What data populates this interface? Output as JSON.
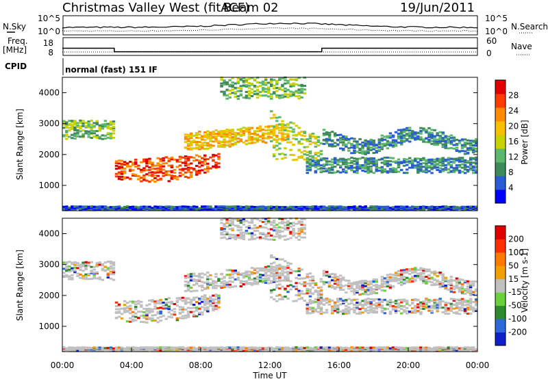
{
  "header": {
    "station": "Christmas Valley West (fitACF)",
    "beam": "Beam 02",
    "date": "19/Jun/2011"
  },
  "left_labels": {
    "nsky": "N.Sky",
    "freq": "Freq.",
    "mhz": "[MHz]",
    "cpid": "CPID"
  },
  "right_labels": {
    "nsearch": "N.Search",
    "nave": "Nave"
  },
  "cpid_text": "normal (fast) 151 IF",
  "noise_ticks_left": [
    "10^5",
    "10^0"
  ],
  "noise_ticks_right": [
    "10^5",
    "10^0"
  ],
  "freq_ticks_left": [
    "18",
    "8"
  ],
  "nave_ticks_right": [
    "60",
    "0"
  ],
  "colors": {
    "power_scale": [
      "#0000ff",
      "#2a5cd6",
      "#3e8a5a",
      "#5cb86a",
      "#c8d200",
      "#f6c000",
      "#ff8c00",
      "#ff3c00",
      "#e00000"
    ],
    "velocity_scale": [
      "#1020c8",
      "#2c68d8",
      "#2e8a2e",
      "#6ad03c",
      "#c0c0c0",
      "#f0a000",
      "#ff7a00",
      "#ff3000",
      "#e00000"
    ]
  },
  "chart_data": [
    {
      "type": "heatmap",
      "name": "Power",
      "ylabel": "Slant Range [km]",
      "xlabel": "",
      "ylim": [
        180,
        4500
      ],
      "xlim": [
        0,
        24
      ],
      "y_ticks": [
        "1000",
        "2000",
        "3000",
        "4000"
      ],
      "colorbar_label": "Power [dB]",
      "colorbar_ticks": [
        "4",
        "8",
        "12",
        "16",
        "20",
        "24",
        "28"
      ]
    },
    {
      "type": "heatmap",
      "name": "Velocity",
      "ylabel": "Slant Range [km]",
      "xlabel": "Time UT",
      "ylim": [
        180,
        4500
      ],
      "xlim": [
        0,
        24
      ],
      "x_ticks": [
        "00:00",
        "04:00",
        "08:00",
        "12:00",
        "16:00",
        "20:00",
        "00:00"
      ],
      "y_ticks": [
        "1000",
        "2000",
        "3000",
        "4000"
      ],
      "colorbar_label": "Velocity [m s-1]",
      "colorbar_ticks": [
        "200",
        "100",
        "50",
        "15",
        "-15",
        "-50",
        "-100",
        "-200"
      ]
    }
  ],
  "freq_series": {
    "x": [
      0,
      3.0,
      3.0,
      15.0,
      15.0,
      24
    ],
    "y": [
      12.3,
      12.3,
      10.0,
      10.0,
      12.3,
      12.3
    ]
  }
}
